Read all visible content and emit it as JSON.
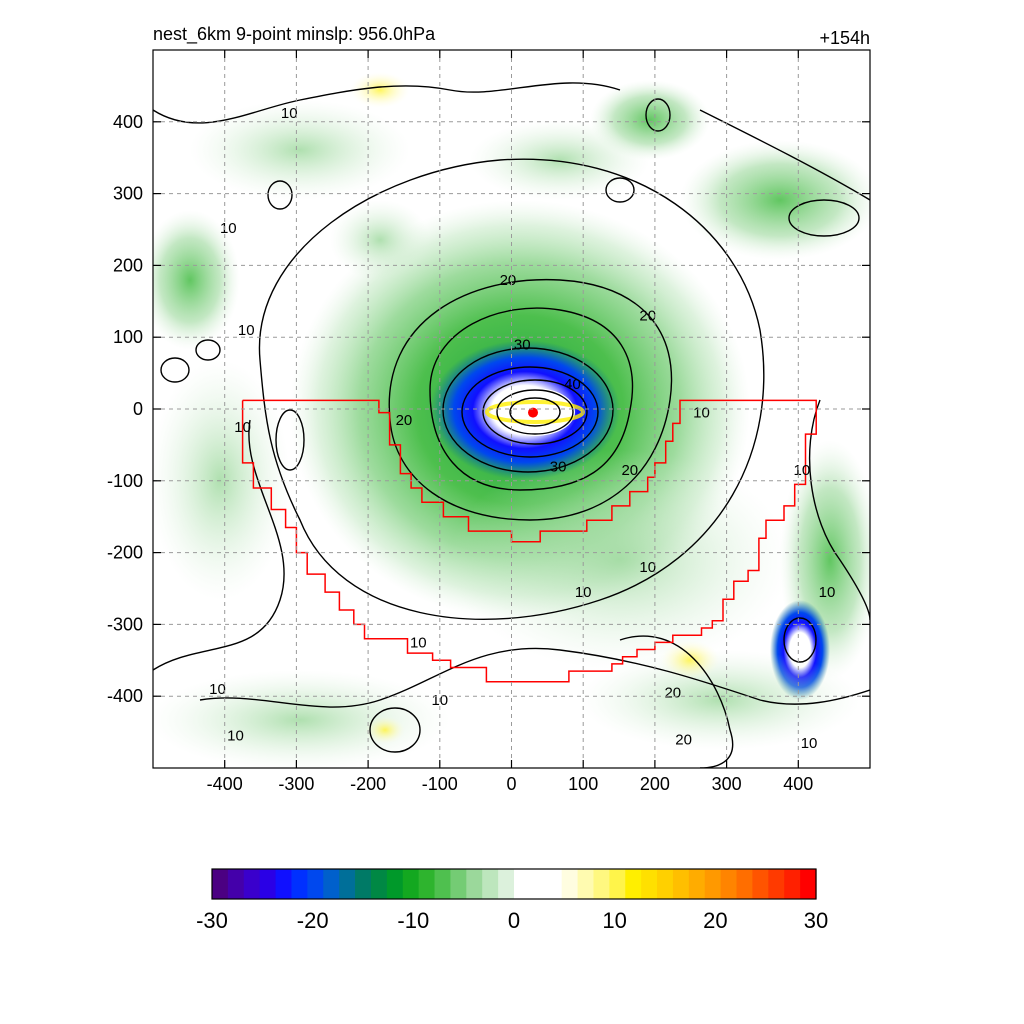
{
  "header": {
    "title": "nest_6km  9-point minslp: 956.0hPa",
    "forecast_hour": "+154h"
  },
  "chart_data": {
    "type": "heatmap",
    "title": "nest_6km  9-point minslp: 956.0hPa",
    "corner_label": "+154h",
    "xlabel": "",
    "ylabel": "",
    "xlim": [
      -500,
      500
    ],
    "ylim": [
      -500,
      500
    ],
    "x_ticks": [
      -400,
      -300,
      -200,
      -100,
      0,
      100,
      200,
      300,
      400
    ],
    "y_ticks": [
      -400,
      -300,
      -200,
      -100,
      0,
      100,
      200,
      300,
      400
    ],
    "grid": true,
    "storm_center": {
      "x": 30,
      "y": -5,
      "color": "#ff0000"
    },
    "contour_levels": [
      10,
      20,
      30,
      40,
      50
    ],
    "contour_labels": [
      {
        "text": "10",
        "x": -310,
        "y": 412
      },
      {
        "text": "10",
        "x": -395,
        "y": 252
      },
      {
        "text": "10",
        "x": -370,
        "y": 110
      },
      {
        "text": "10",
        "x": -375,
        "y": -25
      },
      {
        "text": "20",
        "x": -5,
        "y": 180
      },
      {
        "text": "30",
        "x": 15,
        "y": 90
      },
      {
        "text": "40",
        "x": 85,
        "y": 35
      },
      {
        "text": "20",
        "x": 190,
        "y": 130
      },
      {
        "text": "20",
        "x": -150,
        "y": -15
      },
      {
        "text": "30",
        "x": 65,
        "y": -80
      },
      {
        "text": "20",
        "x": 165,
        "y": -85
      },
      {
        "text": "10",
        "x": 265,
        "y": -5
      },
      {
        "text": "10",
        "x": 405,
        "y": -85
      },
      {
        "text": "10",
        "x": 190,
        "y": -220
      },
      {
        "text": "10",
        "x": 100,
        "y": -255
      },
      {
        "text": "10",
        "x": -130,
        "y": -325
      },
      {
        "text": "10",
        "x": 440,
        "y": -255
      },
      {
        "text": "10",
        "x": -410,
        "y": -390
      },
      {
        "text": "10",
        "x": -385,
        "y": -455
      },
      {
        "text": "10",
        "x": -100,
        "y": -405
      },
      {
        "text": "20",
        "x": 225,
        "y": -395
      },
      {
        "text": "20",
        "x": 240,
        "y": -460
      },
      {
        "text": "10",
        "x": 415,
        "y": -465
      }
    ],
    "red_region_outline": [
      [
        -375,
        12
      ],
      [
        -185,
        12
      ],
      [
        -185,
        -5
      ],
      [
        -170,
        -5
      ],
      [
        -170,
        -50
      ],
      [
        -155,
        -50
      ],
      [
        -155,
        -90
      ],
      [
        -140,
        -90
      ],
      [
        -140,
        -110
      ],
      [
        -125,
        -110
      ],
      [
        -125,
        -130
      ],
      [
        -95,
        -130
      ],
      [
        -95,
        -150
      ],
      [
        -60,
        -150
      ],
      [
        -60,
        -170
      ],
      [
        0,
        -170
      ],
      [
        0,
        -185
      ],
      [
        40,
        -185
      ],
      [
        40,
        -170
      ],
      [
        105,
        -170
      ],
      [
        105,
        -155
      ],
      [
        140,
        -155
      ],
      [
        140,
        -135
      ],
      [
        165,
        -135
      ],
      [
        165,
        -115
      ],
      [
        190,
        -115
      ],
      [
        190,
        -95
      ],
      [
        200,
        -95
      ],
      [
        200,
        -75
      ],
      [
        215,
        -75
      ],
      [
        215,
        -45
      ],
      [
        225,
        -45
      ],
      [
        225,
        -20
      ],
      [
        235,
        -20
      ],
      [
        235,
        12
      ],
      [
        425,
        12
      ],
      [
        425,
        -35
      ],
      [
        410,
        -35
      ],
      [
        410,
        -105
      ],
      [
        395,
        -105
      ],
      [
        395,
        -135
      ],
      [
        380,
        -135
      ],
      [
        380,
        -155
      ],
      [
        355,
        -155
      ],
      [
        355,
        -180
      ],
      [
        345,
        -180
      ],
      [
        345,
        -225
      ],
      [
        330,
        -225
      ],
      [
        330,
        -240
      ],
      [
        310,
        -240
      ],
      [
        310,
        -265
      ],
      [
        295,
        -265
      ],
      [
        295,
        -295
      ],
      [
        280,
        -295
      ],
      [
        280,
        -305
      ],
      [
        265,
        -305
      ],
      [
        265,
        -315
      ],
      [
        225,
        -315
      ],
      [
        225,
        -325
      ],
      [
        200,
        -325
      ],
      [
        200,
        -335
      ],
      [
        175,
        -335
      ],
      [
        175,
        -345
      ],
      [
        155,
        -345
      ],
      [
        155,
        -355
      ],
      [
        140,
        -355
      ],
      [
        140,
        -365
      ],
      [
        80,
        -365
      ],
      [
        80,
        -380
      ],
      [
        -35,
        -380
      ],
      [
        -35,
        -360
      ],
      [
        -85,
        -360
      ],
      [
        -85,
        -350
      ],
      [
        -110,
        -350
      ],
      [
        -110,
        -340
      ],
      [
        -145,
        -340
      ],
      [
        -145,
        -320
      ],
      [
        -205,
        -320
      ],
      [
        -205,
        -300
      ],
      [
        -220,
        -300
      ],
      [
        -220,
        -280
      ],
      [
        -240,
        -280
      ],
      [
        -240,
        -255
      ],
      [
        -260,
        -255
      ],
      [
        -260,
        -230
      ],
      [
        -285,
        -230
      ],
      [
        -285,
        -200
      ],
      [
        -300,
        -200
      ],
      [
        -300,
        -165
      ],
      [
        -315,
        -165
      ],
      [
        -315,
        -140
      ],
      [
        -335,
        -140
      ],
      [
        -335,
        -110
      ],
      [
        -360,
        -110
      ],
      [
        -360,
        -75
      ],
      [
        -375,
        -75
      ],
      [
        -375,
        12
      ]
    ],
    "colorbar": {
      "min": -30,
      "max": 30,
      "tick_labels": [
        "-30",
        "-20",
        "-10",
        "0",
        "10",
        "20",
        "30"
      ],
      "colors": [
        "#4b0082",
        "#4400aa",
        "#3a00cc",
        "#2a00e6",
        "#1010ff",
        "#0030ff",
        "#0048ee",
        "#0060cc",
        "#006f99",
        "#007a66",
        "#008844",
        "#00992a",
        "#13a820",
        "#2eb42e",
        "#4fc04f",
        "#74cc74",
        "#9bd89b",
        "#bde6bd",
        "#dcf1dc",
        "#ffffff",
        "#ffffff",
        "#ffffff",
        "#fffde0",
        "#fffbb0",
        "#fff880",
        "#fff44a",
        "#ffef00",
        "#ffe000",
        "#ffd000",
        "#ffbf00",
        "#ffac00",
        "#ff9900",
        "#ff8400",
        "#ff6e00",
        "#ff5400",
        "#ff3a00",
        "#ff2000",
        "#ff0000"
      ]
    }
  }
}
